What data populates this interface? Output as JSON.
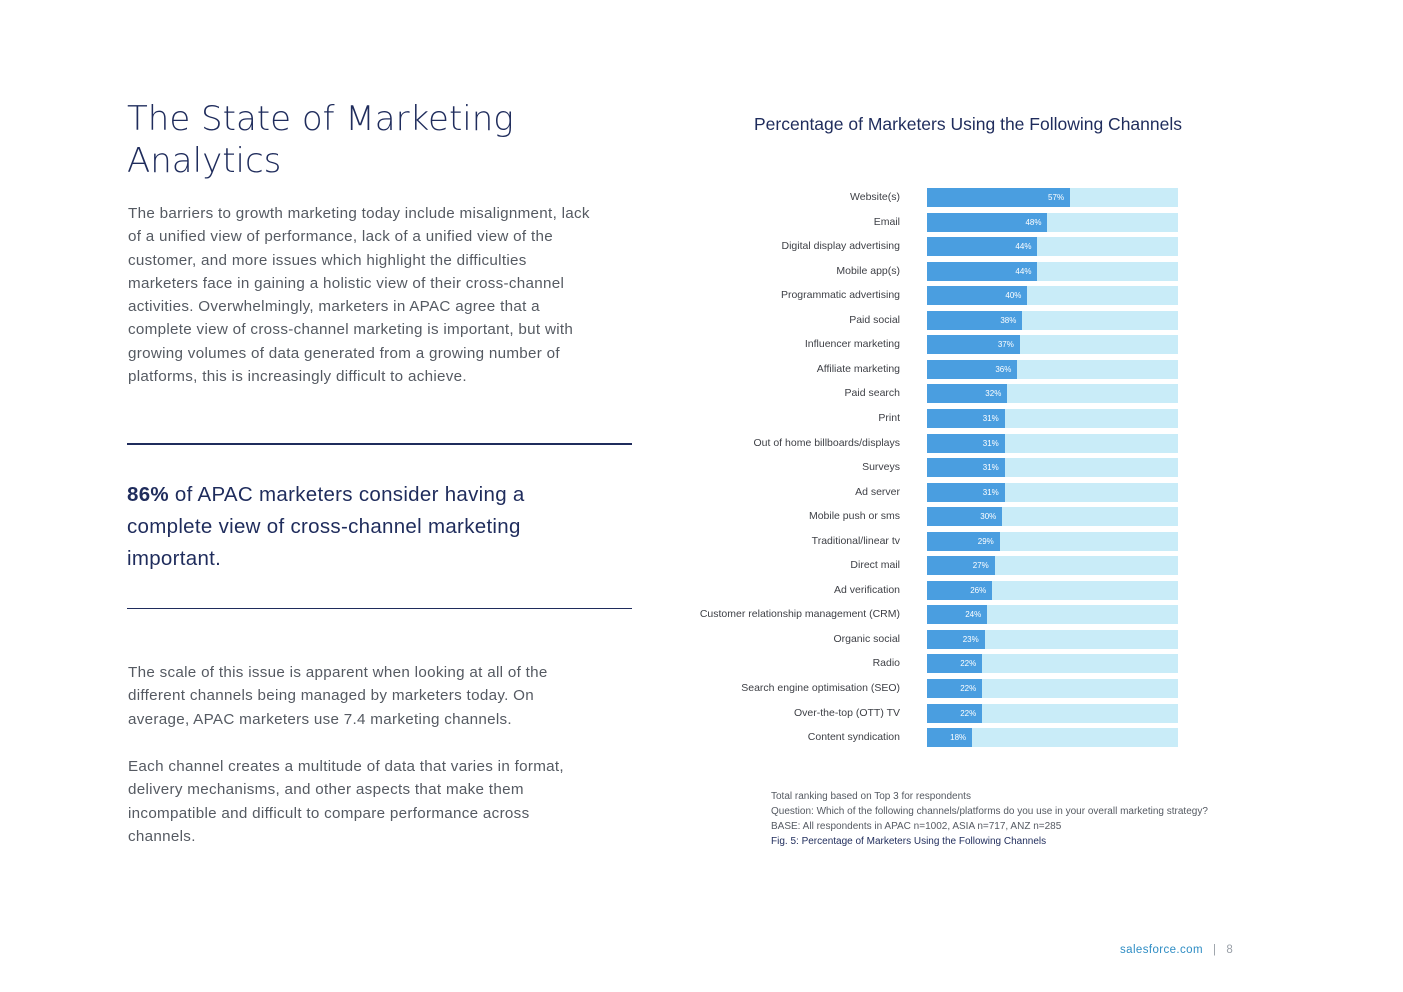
{
  "page": {
    "title": "The State of Marketing Analytics",
    "intro": "The barriers to growth marketing today include misalignment, lack of a unified view of performance, lack of a unified view of the customer, and more issues which highlight the difficulties marketers face in gaining a holistic view of their cross-channel activities. Overwhelmingly, marketers in APAC agree that a complete view of cross-channel marketing is important, but with growing volumes of data generated from a growing number of platforms, this is increasingly difficult to achieve.",
    "stat_value": "86%",
    "stat_text": " of APAC marketers consider having a complete view of cross-channel marketing important.",
    "para2": "The scale of this issue is apparent when looking at all of the different channels being managed by marketers today. On average, APAC marketers use 7.4 marketing channels.",
    "para3": "Each channel creates a multitude of data that varies in format, delivery mechanisms, and other aspects that make them incompatible and difficult to compare performance across channels."
  },
  "chart_data": {
    "type": "bar",
    "orientation": "horizontal",
    "title": "Percentage of Marketers Using the Following Channels",
    "ylim": [
      0,
      100
    ],
    "categories": [
      "Website(s)",
      "Email",
      "Digital display advertising",
      "Mobile app(s)",
      "Programmatic advertising",
      "Paid social",
      "Influencer marketing",
      "Affiliate marketing",
      "Paid search",
      "Print",
      "Out of home billboards/displays",
      "Surveys",
      "Ad server",
      "Mobile push or sms",
      "Traditional/linear tv",
      "Direct mail",
      "Ad verification",
      "Customer relationship management (CRM)",
      "Organic social",
      "Radio",
      "Search engine optimisation (SEO)",
      "Over-the-top (OTT) TV",
      "Content syndication"
    ],
    "values": [
      57,
      48,
      44,
      44,
      40,
      38,
      37,
      36,
      32,
      31,
      31,
      31,
      31,
      30,
      29,
      27,
      26,
      24,
      23,
      22,
      22,
      22,
      18
    ],
    "colors": {
      "fill": "#4a9ee0",
      "track": "#c9ecf8"
    }
  },
  "notes": {
    "line1": "Total ranking based on Top 3 for respondents",
    "line2": "Question: Which of the following channels/platforms do you use in your overall marketing strategy?",
    "line3": "BASE: All respondents in APAC n=1002, ASIA n=717, ANZ n=285",
    "fig": "Fig. 5: Percentage of Marketers Using the Following Channels"
  },
  "footer": {
    "brand": "salesforce.com",
    "separator": "|",
    "page_number": "8"
  }
}
